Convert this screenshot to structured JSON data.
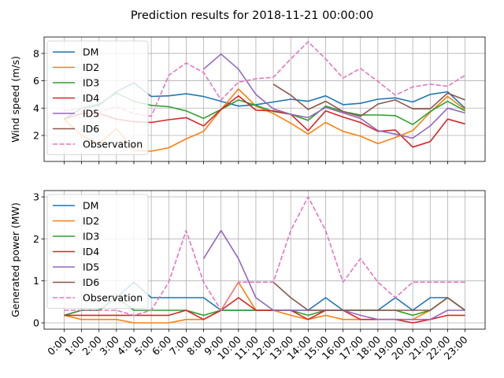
{
  "figure": {
    "suptitle": "Prediction results for 2018-11-21 00:00:00"
  },
  "chart_data": [
    {
      "type": "line",
      "ylabel": "Wind speed (m/s)",
      "xlabel": "",
      "ylim": [
        0.1,
        9.2
      ],
      "yticks": [
        2,
        4,
        6,
        8
      ],
      "grid": true,
      "legend_position": "upper-left",
      "x": [
        "0:00",
        "1:00",
        "2:00",
        "3:00",
        "4:00",
        "5:00",
        "6:00",
        "7:00",
        "8:00",
        "9:00",
        "10:00",
        "11:00",
        "12:00",
        "13:00",
        "14:00",
        "15:00",
        "16:00",
        "17:00",
        "18:00",
        "19:00",
        "20:00",
        "21:00",
        "22:00",
        "23:00"
      ],
      "series": [
        {
          "name": "DM",
          "color": "#1f77b4",
          "dashed": false,
          "values": [
            3.2,
            4.0,
            4.2,
            5.2,
            5.85,
            4.85,
            4.9,
            5.05,
            4.85,
            4.5,
            4.15,
            4.25,
            4.45,
            4.65,
            4.5,
            4.9,
            4.25,
            4.35,
            4.65,
            4.75,
            4.45,
            5.0,
            5.2,
            4.0
          ]
        },
        {
          "name": "ID2",
          "color": "#ff7f0e",
          "dashed": false,
          "values": [
            3.2,
            2.0,
            1.4,
            2.5,
            0.9,
            0.85,
            1.1,
            1.75,
            2.3,
            3.9,
            5.4,
            4.15,
            3.6,
            2.9,
            2.1,
            2.95,
            2.3,
            1.95,
            1.4,
            1.85,
            2.35,
            3.7,
            4.85,
            3.9
          ]
        },
        {
          "name": "ID3",
          "color": "#2ca02c",
          "dashed": false,
          "values": [
            3.2,
            4.0,
            4.3,
            5.1,
            4.5,
            4.2,
            4.1,
            3.8,
            3.25,
            3.9,
            4.6,
            4.2,
            3.75,
            3.55,
            3.1,
            4.15,
            3.75,
            3.5,
            3.5,
            3.45,
            2.8,
            3.75,
            4.5,
            3.8
          ]
        },
        {
          "name": "ID4",
          "color": "#d62728",
          "dashed": false,
          "values": [
            3.2,
            3.6,
            3.6,
            3.2,
            3.0,
            2.95,
            3.15,
            3.3,
            2.7,
            3.9,
            4.9,
            3.85,
            3.8,
            3.55,
            2.35,
            3.8,
            3.35,
            2.95,
            2.3,
            2.4,
            1.15,
            1.55,
            3.2,
            2.85
          ]
        },
        {
          "name": "ID5",
          "color": "#9467bd",
          "dashed": false,
          "values": [
            null,
            null,
            null,
            null,
            null,
            null,
            null,
            null,
            6.85,
            7.95,
            6.85,
            5.0,
            3.95,
            3.55,
            3.3,
            4.05,
            3.65,
            3.25,
            2.35,
            2.1,
            1.8,
            2.7,
            4.0,
            3.65
          ]
        },
        {
          "name": "ID6",
          "color": "#8c564b",
          "dashed": false,
          "values": [
            null,
            null,
            null,
            null,
            null,
            null,
            null,
            null,
            null,
            null,
            null,
            null,
            5.75,
            4.95,
            3.9,
            4.5,
            3.75,
            3.4,
            4.3,
            4.6,
            3.95,
            3.95,
            5.1,
            4.6
          ]
        },
        {
          "name": "Observation",
          "color": "#e377c2",
          "dashed": true,
          "values": [
            3.8,
            4.0,
            3.7,
            4.1,
            3.6,
            3.4,
            6.4,
            7.3,
            6.6,
            4.6,
            5.9,
            6.15,
            6.25,
            7.6,
            8.85,
            7.6,
            6.2,
            6.9,
            5.95,
            4.95,
            5.55,
            5.75,
            5.6,
            6.4
          ]
        }
      ]
    },
    {
      "type": "line",
      "ylabel": "Generated power (MW)",
      "xlabel": "",
      "ylim": [
        -0.15,
        3.15
      ],
      "yticks": [
        0,
        1,
        2,
        3
      ],
      "grid": true,
      "legend_position": "upper-left",
      "x": [
        "0:00",
        "1:00",
        "2:00",
        "3:00",
        "4:00",
        "5:00",
        "6:00",
        "7:00",
        "8:00",
        "9:00",
        "10:00",
        "11:00",
        "12:00",
        "13:00",
        "14:00",
        "15:00",
        "16:00",
        "17:00",
        "18:00",
        "19:00",
        "20:00",
        "21:00",
        "22:00",
        "23:00"
      ],
      "series": [
        {
          "name": "DM",
          "color": "#1f77b4",
          "dashed": false,
          "values": [
            0.18,
            0.3,
            0.3,
            0.6,
            0.97,
            0.6,
            0.6,
            0.6,
            0.6,
            0.3,
            0.3,
            0.3,
            0.3,
            0.3,
            0.3,
            0.6,
            0.3,
            0.3,
            0.3,
            0.6,
            0.3,
            0.6,
            0.6,
            0.3
          ]
        },
        {
          "name": "ID2",
          "color": "#ff7f0e",
          "dashed": false,
          "values": [
            0.18,
            0.08,
            0.08,
            0.08,
            0.0,
            0.0,
            0.0,
            0.08,
            0.08,
            0.3,
            0.97,
            0.3,
            0.3,
            0.18,
            0.08,
            0.18,
            0.08,
            0.08,
            0.08,
            0.08,
            0.08,
            0.3,
            0.6,
            0.3
          ]
        },
        {
          "name": "ID3",
          "color": "#2ca02c",
          "dashed": false,
          "values": [
            0.18,
            0.3,
            0.3,
            0.6,
            0.3,
            0.3,
            0.3,
            0.3,
            0.18,
            0.3,
            0.3,
            0.3,
            0.3,
            0.3,
            0.18,
            0.3,
            0.3,
            0.3,
            0.3,
            0.3,
            0.18,
            0.3,
            0.6,
            0.3
          ]
        },
        {
          "name": "ID4",
          "color": "#d62728",
          "dashed": false,
          "values": [
            0.18,
            0.18,
            0.18,
            0.18,
            0.18,
            0.18,
            0.18,
            0.3,
            0.08,
            0.3,
            0.6,
            0.3,
            0.3,
            0.3,
            0.08,
            0.3,
            0.3,
            0.08,
            0.08,
            0.08,
            0.0,
            0.08,
            0.18,
            0.18
          ]
        },
        {
          "name": "ID5",
          "color": "#9467bd",
          "dashed": false,
          "values": [
            null,
            null,
            null,
            null,
            null,
            null,
            null,
            null,
            1.53,
            2.2,
            1.53,
            0.6,
            0.3,
            0.3,
            0.3,
            0.3,
            0.3,
            0.18,
            0.08,
            0.08,
            0.08,
            0.08,
            0.3,
            0.3
          ]
        },
        {
          "name": "ID6",
          "color": "#8c564b",
          "dashed": false,
          "values": [
            null,
            null,
            null,
            null,
            null,
            null,
            null,
            null,
            null,
            null,
            null,
            null,
            0.97,
            0.6,
            0.3,
            0.3,
            0.3,
            0.3,
            0.3,
            0.3,
            0.3,
            0.3,
            0.6,
            0.3
          ]
        },
        {
          "name": "Observation",
          "color": "#e377c2",
          "dashed": true,
          "values": [
            0.3,
            0.3,
            0.3,
            0.3,
            0.18,
            0.3,
            0.97,
            2.2,
            0.97,
            0.3,
            0.97,
            0.97,
            0.97,
            2.2,
            3.0,
            2.2,
            0.97,
            1.53,
            0.97,
            0.6,
            0.97,
            0.97,
            0.97,
            0.97
          ]
        }
      ]
    }
  ]
}
